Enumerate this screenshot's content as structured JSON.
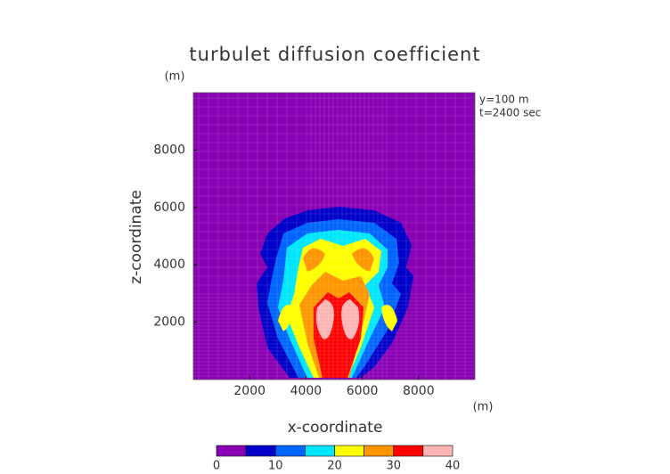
{
  "chart_data": {
    "type": "contour",
    "title": "turbulet diffusion coefficient",
    "xlabel": "x-coordinate",
    "ylabel": "z-coordinate",
    "x_unit": "(m)",
    "y_unit": "(m)",
    "annotations": [
      "y=100 m",
      "t=2400 sec"
    ],
    "xlim": [
      0,
      10000
    ],
    "ylim": [
      0,
      10000
    ],
    "xticks": [
      2000,
      4000,
      6000,
      8000
    ],
    "yticks": [
      2000,
      4000,
      6000,
      8000
    ],
    "levels": [
      0,
      5,
      10,
      15,
      20,
      25,
      30,
      35,
      40
    ],
    "colors": [
      "#8a00b4",
      "#0000c8",
      "#0064ff",
      "#00e6ff",
      "#ffff00",
      "#ff9600",
      "#ff0000",
      "#ffb4b4"
    ],
    "colorbar_ticks": [
      0,
      10,
      20,
      30,
      40
    ]
  }
}
